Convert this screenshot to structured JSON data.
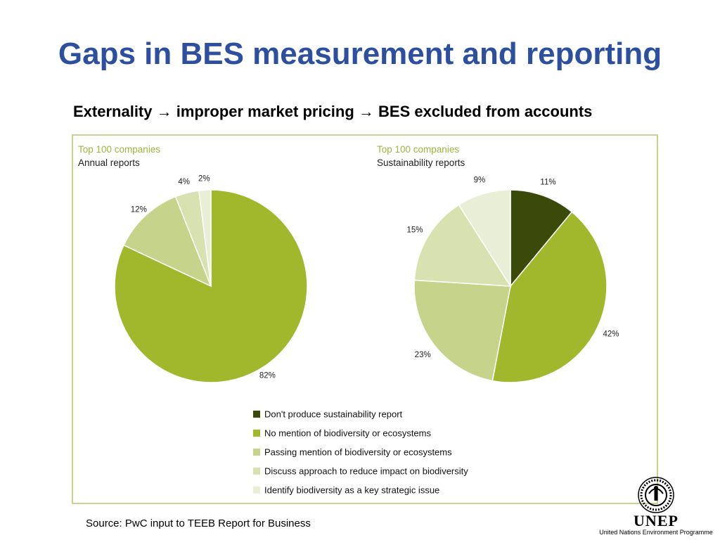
{
  "slide": {
    "title": "Gaps in BES measurement and reporting",
    "subtitle": "Externality → improper market pricing → BES excluded from accounts",
    "source": "Source: PwC input to TEEB Report for Business"
  },
  "logo": {
    "name": "UNEP",
    "full_name": "United Nations Environment Programme"
  },
  "colors": {
    "title": "#2d4fa0",
    "chart_caption_line1": "#9bb53d",
    "frame": "#c5d58e"
  },
  "chart_data": [
    {
      "type": "pie",
      "caption_line1": "Top 100 companies",
      "caption_line2": "Annual reports",
      "slices": [
        {
          "category": "No mention of biodiversity or ecosystems",
          "value": 82,
          "label": "82%",
          "color": "#a1b82c"
        },
        {
          "category": "Passing mention of biodiversity or ecosystems",
          "value": 12,
          "label": "12%",
          "color": "#c6d38b"
        },
        {
          "category": "Discuss approach to reduce impact on biodiversity",
          "value": 4,
          "label": "4%",
          "color": "#d8e2b0"
        },
        {
          "category": "Identify biodiversity as a key strategic issue",
          "value": 2,
          "label": "2%",
          "color": "#e9eed6"
        }
      ]
    },
    {
      "type": "pie",
      "caption_line1": "Top 100 companies",
      "caption_line2": "Sustainability reports",
      "slices": [
        {
          "category": "Don't produce sustainability report",
          "value": 11,
          "label": "11%",
          "color": "#3b4a0a"
        },
        {
          "category": "No mention of biodiversity or ecosystems",
          "value": 42,
          "label": "42%",
          "color": "#a1b82c"
        },
        {
          "category": "Passing mention of biodiversity or ecosystems",
          "value": 23,
          "label": "23%",
          "color": "#c6d38b"
        },
        {
          "category": "Discuss approach to reduce impact on biodiversity",
          "value": 15,
          "label": "15%",
          "color": "#d8e2b0"
        },
        {
          "category": "Identify biodiversity as a key strategic issue",
          "value": 9,
          "label": "9%",
          "color": "#e9eed6"
        }
      ]
    }
  ],
  "legend": [
    {
      "label": "Don't produce sustainability report",
      "color": "#3b4a0a"
    },
    {
      "label": "No mention of biodiversity or ecosystems",
      "color": "#a1b82c"
    },
    {
      "label": "Passing mention of biodiversity or ecosystems",
      "color": "#c6d38b"
    },
    {
      "label": "Discuss approach to reduce impact on biodiversity",
      "color": "#d8e2b0"
    },
    {
      "label": "Identify biodiversity as a key strategic issue",
      "color": "#e9eed6"
    }
  ]
}
